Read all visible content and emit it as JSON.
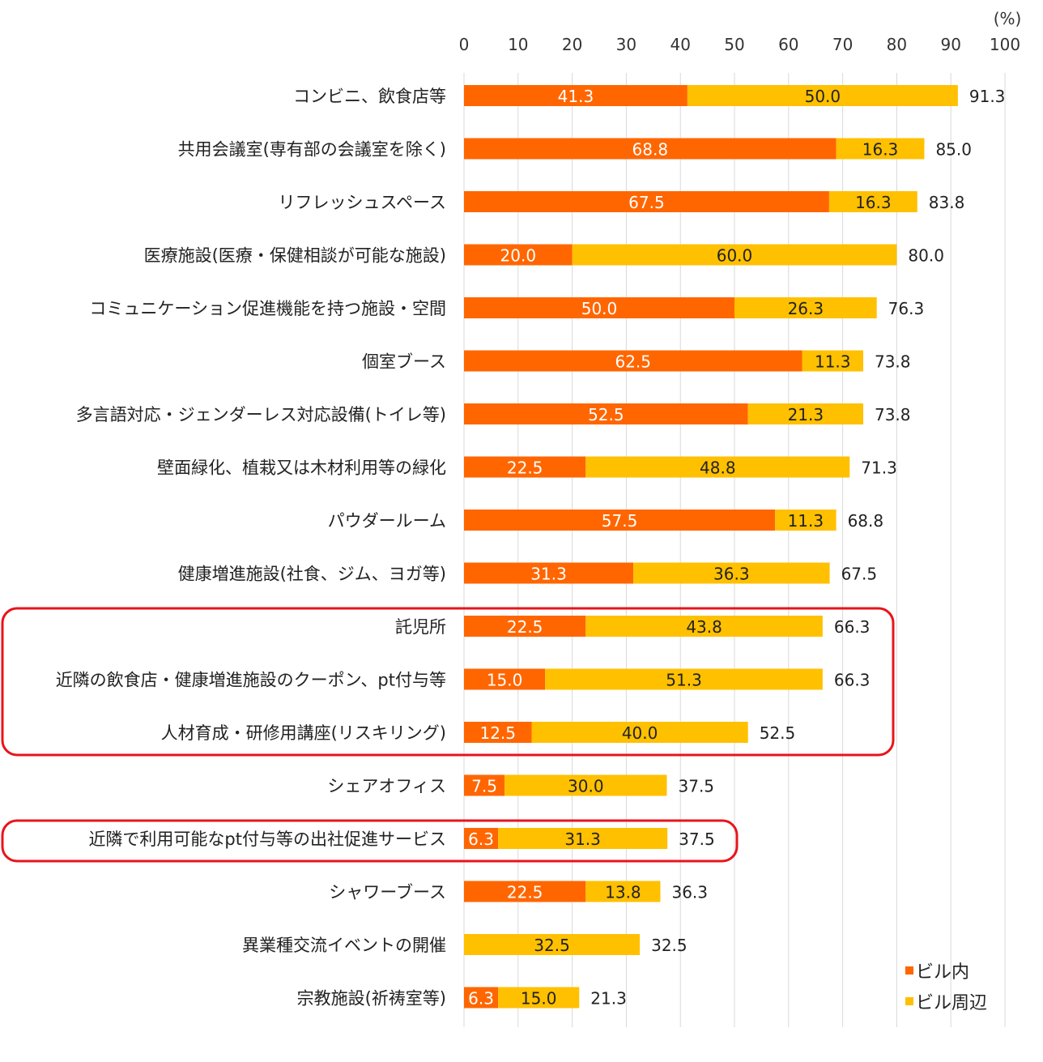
{
  "chart_data": {
    "type": "bar",
    "orientation": "horizontal",
    "stacked": true,
    "unit_label": "(%)",
    "xlim": [
      0,
      100
    ],
    "xticks": [
      "0",
      "10",
      "20",
      "30",
      "40",
      "50",
      "60",
      "70",
      "80",
      "90",
      "100"
    ],
    "grid": true,
    "legend_position": "bottom-right",
    "categories": [
      "コンビニ、飲食店等",
      "共用会議室(専有部の会議室を除く)",
      "リフレッシュスペース",
      "医療施設(医療・保健相談が可能な施設)",
      "コミュニケーション促進機能を持つ施設・空間",
      "個室ブース",
      "多言語対応・ジェンダーレス対応設備(トイレ等)",
      "壁面緑化、植栽又は木材利用等の緑化",
      "パウダールーム",
      "健康増進施設(社食、ジム、ヨガ等)",
      "託児所",
      "近隣の飲食店・健康増進施設のクーポン、pt付与等",
      "人材育成・研修用講座(リスキリング)",
      "シェアオフィス",
      "近隣で利用可能なpt付与等の出社促進サービス",
      "シャワーブース",
      "異業種交流イベントの開催",
      "宗教施設(祈祷室等)"
    ],
    "series": [
      {
        "name": "ビル内",
        "color": "#FF6600",
        "values": [
          41.3,
          68.8,
          67.5,
          20.0,
          50.0,
          62.5,
          52.5,
          22.5,
          57.5,
          31.3,
          22.5,
          15.0,
          12.5,
          7.5,
          6.3,
          22.5,
          0,
          6.3
        ],
        "labels": [
          "41.3",
          "68.8",
          "67.5",
          "20.0",
          "50.0",
          "62.5",
          "52.5",
          "22.5",
          "57.5",
          "31.3",
          "22.5",
          "15.0",
          "12.5",
          "7.5",
          "6.3",
          "22.5",
          "",
          "6.3"
        ]
      },
      {
        "name": "ビル周辺",
        "color": "#FFC000",
        "values": [
          50.0,
          16.3,
          16.3,
          60.0,
          26.3,
          11.3,
          21.3,
          48.8,
          11.3,
          36.3,
          43.8,
          51.3,
          40.0,
          30.0,
          31.3,
          13.8,
          32.5,
          15.0
        ],
        "labels": [
          "50.0",
          "16.3",
          "16.3",
          "60.0",
          "26.3",
          "11.3",
          "21.3",
          "48.8",
          "11.3",
          "36.3",
          "43.8",
          "51.3",
          "40.0",
          "30.0",
          "31.3",
          "13.8",
          "32.5",
          "15.0"
        ]
      }
    ],
    "totals": [
      "91.3",
      "85.0",
      "83.8",
      "80.0",
      "76.3",
      "73.8",
      "73.8",
      "71.3",
      "68.8",
      "67.5",
      "66.3",
      "66.3",
      "52.5",
      "37.5",
      "37.5",
      "36.3",
      "32.5",
      "21.3"
    ],
    "highlight_groups": [
      [
        10,
        11,
        12
      ],
      [
        14
      ]
    ],
    "highlight_color": "#E8141B"
  }
}
